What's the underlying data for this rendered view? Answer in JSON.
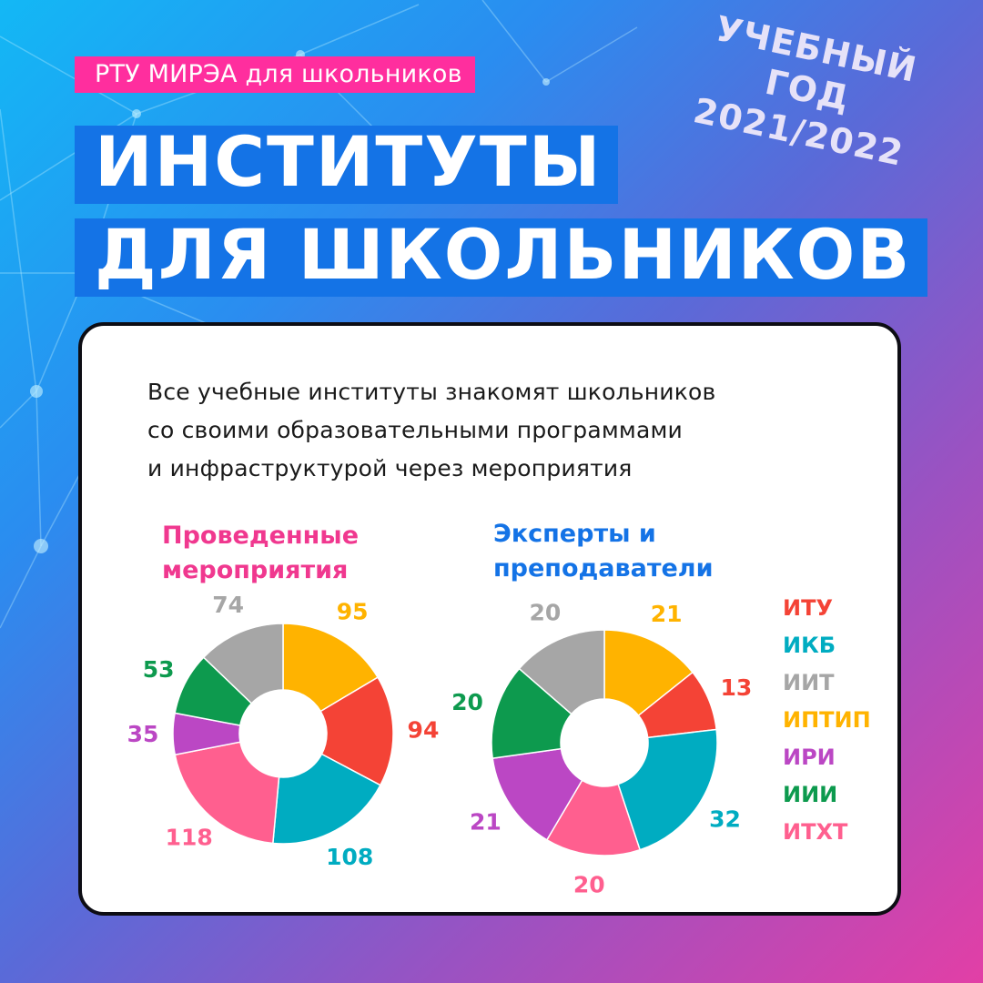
{
  "header": {
    "tag": "РТУ МИРЭА для школьников",
    "title_line1": "ИНСТИТУТЫ",
    "title_line2": "ДЛЯ ШКОЛЬНИКОВ",
    "year_line1": "УЧЕБНЫЙ ГОД",
    "year_line2": "2021/2022"
  },
  "card": {
    "intro_lines": [
      "Все учебные институты знакомят школьников",
      "со своими образовательными программами",
      "и инфраструктурой через мероприятия"
    ]
  },
  "colors": {
    "ИТУ": "#f44336",
    "ИКБ": "#00acc1",
    "ИИТ": "#a6a6a6",
    "ИПТИП": "#ffb300",
    "ИРИ": "#bb47c4",
    "ИИИ": "#0d9a4e",
    "ИТХТ": "#ff5f8f",
    "accent_pink": "#ff2e9e",
    "accent_blue": "#1473e6"
  },
  "chart_data": [
    {
      "type": "pie",
      "style": "donut",
      "title_lines": [
        "Проведенные",
        "мероприятия"
      ],
      "categories": [
        "ИПТИП",
        "ИТУ",
        "ИКБ",
        "ИТХТ",
        "ИРИ",
        "ИИИ",
        "ИИТ"
      ],
      "values": [
        95,
        94,
        108,
        118,
        35,
        53,
        74
      ],
      "legend": "right"
    },
    {
      "type": "pie",
      "style": "donut",
      "title_lines": [
        "Эксперты и",
        "преподаватели"
      ],
      "categories": [
        "ИПТИП",
        "ИТУ",
        "ИКБ",
        "ИТХТ",
        "ИРИ",
        "ИИИ",
        "ИИТ"
      ],
      "values": [
        21,
        13,
        32,
        20,
        21,
        20,
        20
      ],
      "legend": "right"
    }
  ],
  "legend": [
    "ИТУ",
    "ИКБ",
    "ИИТ",
    "ИПТИП",
    "ИРИ",
    "ИИИ",
    "ИТХТ"
  ]
}
